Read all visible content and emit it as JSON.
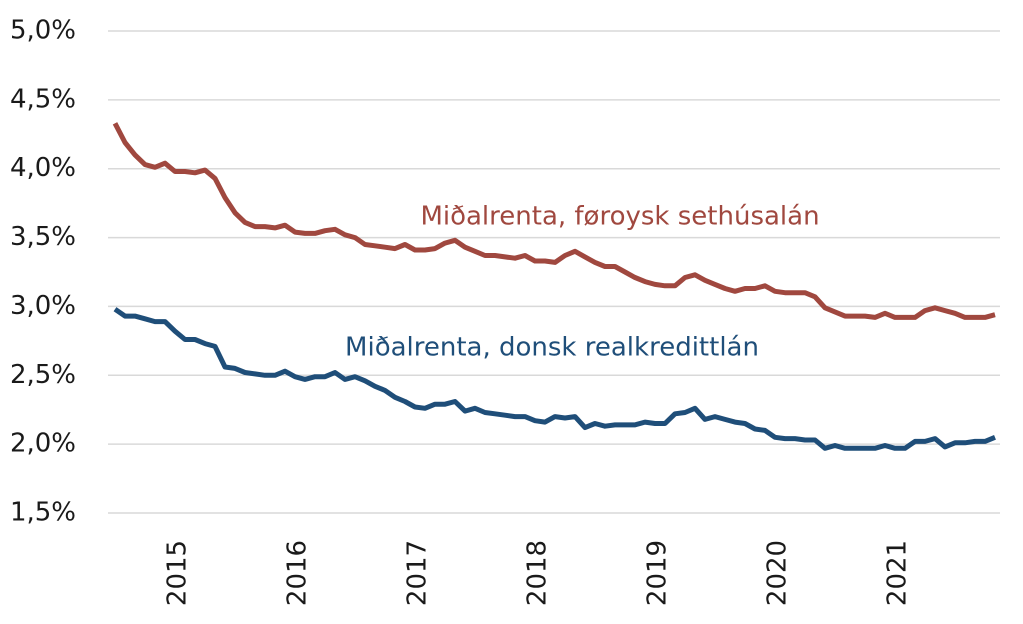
{
  "chart_data": {
    "type": "line",
    "categories": [
      null,
      null,
      null,
      null,
      null,
      null,
      null,
      "2015",
      null,
      null,
      null,
      null,
      null,
      null,
      null,
      null,
      null,
      null,
      null,
      "2016",
      null,
      null,
      null,
      null,
      null,
      null,
      null,
      null,
      null,
      null,
      null,
      "2017",
      null,
      null,
      null,
      null,
      null,
      null,
      null,
      null,
      null,
      null,
      null,
      "2018",
      null,
      null,
      null,
      null,
      null,
      null,
      null,
      null,
      null,
      null,
      null,
      "2019",
      null,
      null,
      null,
      null,
      null,
      null,
      null,
      null,
      null,
      null,
      null,
      "2020",
      null,
      null,
      null,
      null,
      null,
      null,
      null,
      null,
      null,
      null,
      null,
      "2021",
      null,
      null,
      null,
      null,
      null,
      null,
      null,
      null,
      null
    ],
    "series": [
      {
        "name": "Miðalrenta, føroysk sethúsalán",
        "color": "#a0483f",
        "values": [
          4.33,
          4.19,
          4.1,
          4.03,
          4.01,
          4.04,
          3.98,
          3.98,
          3.97,
          3.99,
          3.93,
          3.79,
          3.68,
          3.61,
          3.58,
          3.58,
          3.57,
          3.59,
          3.54,
          3.53,
          3.53,
          3.55,
          3.56,
          3.52,
          3.5,
          3.45,
          3.44,
          3.43,
          3.42,
          3.45,
          3.41,
          3.41,
          3.42,
          3.46,
          3.48,
          3.43,
          3.4,
          3.37,
          3.37,
          3.36,
          3.35,
          3.37,
          3.33,
          3.33,
          3.32,
          3.37,
          3.4,
          3.36,
          3.32,
          3.29,
          3.29,
          3.25,
          3.21,
          3.18,
          3.16,
          3.15,
          3.15,
          3.21,
          3.23,
          3.19,
          3.16,
          3.13,
          3.11,
          3.13,
          3.13,
          3.15,
          3.11,
          3.1,
          3.1,
          3.1,
          3.07,
          2.99,
          2.96,
          2.93,
          2.93,
          2.93,
          2.92,
          2.95,
          2.92,
          2.92,
          2.92,
          2.97,
          2.99,
          2.97,
          2.95,
          2.92,
          2.92,
          2.92,
          2.94
        ]
      },
      {
        "name": "Miðalrenta, donsk realkredittlán",
        "color": "#1f4e79",
        "values": [
          2.98,
          2.93,
          2.93,
          2.91,
          2.89,
          2.89,
          2.82,
          2.76,
          2.76,
          2.73,
          2.71,
          2.56,
          2.55,
          2.52,
          2.51,
          2.5,
          2.5,
          2.53,
          2.49,
          2.47,
          2.49,
          2.49,
          2.52,
          2.47,
          2.49,
          2.46,
          2.42,
          2.39,
          2.34,
          2.31,
          2.27,
          2.26,
          2.29,
          2.29,
          2.31,
          2.24,
          2.26,
          2.23,
          2.22,
          2.21,
          2.2,
          2.2,
          2.17,
          2.16,
          2.2,
          2.19,
          2.2,
          2.12,
          2.15,
          2.13,
          2.14,
          2.14,
          2.14,
          2.16,
          2.15,
          2.15,
          2.22,
          2.23,
          2.26,
          2.18,
          2.2,
          2.18,
          2.16,
          2.15,
          2.11,
          2.1,
          2.05,
          2.04,
          2.04,
          2.03,
          2.03,
          1.97,
          1.99,
          1.97,
          1.97,
          1.97,
          1.97,
          1.99,
          1.97,
          1.97,
          2.02,
          2.02,
          2.04,
          1.98,
          2.01,
          2.01,
          2.02,
          2.02,
          2.05
        ]
      }
    ],
    "ylim": [
      1.5,
      5.0
    ],
    "yticks": [
      {
        "value": 1.5,
        "label": "1,5%"
      },
      {
        "value": 2.0,
        "label": "2,0%"
      },
      {
        "value": 2.5,
        "label": "2,5%"
      },
      {
        "value": 3.0,
        "label": "3,0%"
      },
      {
        "value": 3.5,
        "label": "3,5%"
      },
      {
        "value": 4.0,
        "label": "4,0%"
      },
      {
        "value": 4.5,
        "label": "4,5%"
      },
      {
        "value": 5.0,
        "label": "5,0%"
      }
    ],
    "grid": true
  }
}
